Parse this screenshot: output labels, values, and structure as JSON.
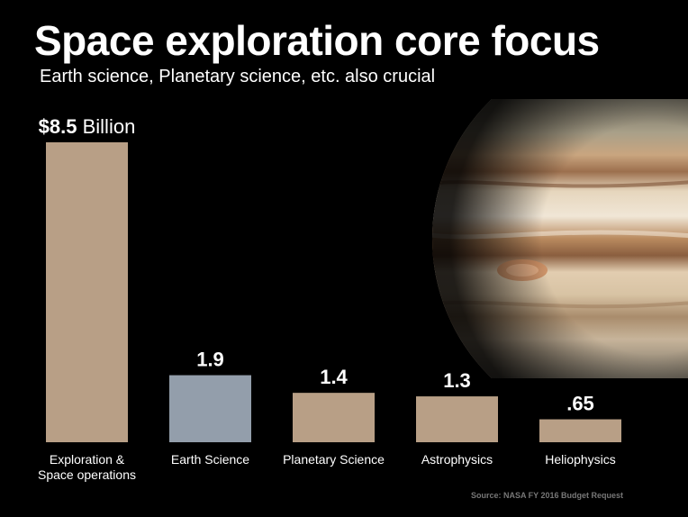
{
  "slide": {
    "title": "Space exploration core focus",
    "subtitle": "Earth science, Planetary science, etc. also crucial",
    "source": "Source: NASA FY 2016 Budget Request"
  },
  "chart_data": {
    "type": "bar",
    "title": "",
    "xlabel": "",
    "ylabel": "",
    "ylim": [
      0,
      8.5
    ],
    "grid": false,
    "legend": "none",
    "categories": [
      "Exploration & Space operations",
      "Earth Science",
      "Planetary Science",
      "Astrophysics",
      "Heliophysics"
    ],
    "category_label_lines": [
      [
        "Exploration &",
        "Space operations"
      ],
      [
        "Earth Science"
      ],
      [
        "Planetary Science"
      ],
      [
        "Astrophysics"
      ],
      [
        "Heliophysics"
      ]
    ],
    "values": [
      8.5,
      1.9,
      1.4,
      1.3,
      0.65
    ],
    "data_labels": [
      {
        "value": "$8.5",
        "suffix": " Billion"
      },
      {
        "value": "1.9",
        "suffix": ""
      },
      {
        "value": "1.4",
        "suffix": ""
      },
      {
        "value": "1.3",
        "suffix": ""
      },
      {
        "value": ".65",
        "suffix": ""
      }
    ],
    "colors": [
      "#b89f86",
      "#939eab",
      "#b89f86",
      "#b89f86",
      "#b89f86"
    ]
  },
  "background": {
    "image": "jupiter-planet",
    "color": "#000000"
  }
}
